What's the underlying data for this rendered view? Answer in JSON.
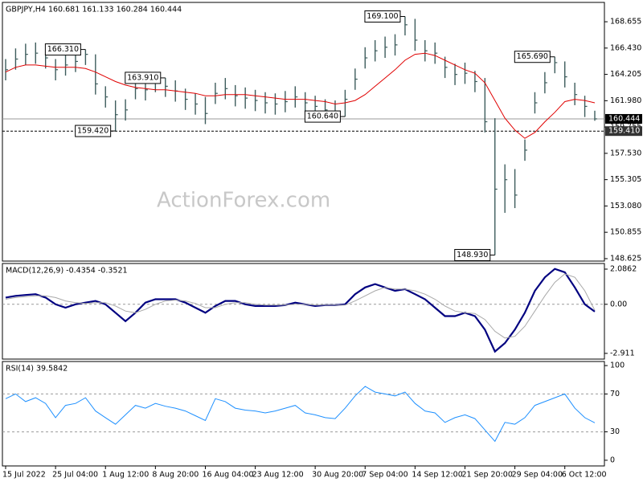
{
  "watermark": "ActionForex.com",
  "chart_data": [
    {
      "type": "ohlc",
      "title": "GBPJPY,H4  160.681 161.133 160.284 160.444",
      "ylim": [
        148.42,
        170.29
      ],
      "yticks": [
        168.655,
        {
          "value": 166.43,
          "label": "166.430"
        },
        164.205,
        {
          "value": 161.98,
          "label": "161.980"
        },
        159.755,
        {
          "value": 157.53,
          "label": "157.530"
        },
        155.305,
        {
          "value": 153.08,
          "label": "153.080"
        },
        150.855,
        148.625
      ],
      "color": "#3d5c5c",
      "high": [
        165.5,
        166.4,
        166.8,
        166.9,
        166.5,
        165.5,
        165.9,
        166.2,
        166.31,
        165.9,
        163.2,
        162.0,
        162.1,
        163.9,
        163.8,
        163.8,
        163.91,
        163.7,
        163.0,
        162.6,
        162.3,
        163.5,
        163.9,
        163.3,
        163.1,
        162.9,
        162.7,
        162.6,
        162.8,
        163.2,
        162.7,
        162.4,
        162.1,
        162.0,
        162.9,
        164.7,
        166.5,
        167.1,
        167.4,
        167.6,
        169.1,
        168.9,
        167.1,
        166.9,
        165.7,
        165.1,
        165.2,
        164.5,
        163.9,
        160.5,
        156.6,
        156.2,
        158.7,
        162.7,
        164.4,
        165.69,
        165.3,
        163.5,
        162.4,
        161.133
      ],
      "low": [
        163.7,
        164.6,
        165.0,
        165.1,
        164.7,
        163.7,
        164.1,
        164.4,
        165.0,
        162.5,
        161.4,
        159.42,
        160.3,
        162.1,
        162.0,
        162.7,
        162.3,
        161.9,
        161.2,
        160.8,
        160.0,
        161.7,
        162.1,
        161.5,
        161.3,
        161.1,
        160.9,
        160.8,
        161.0,
        161.4,
        160.9,
        160.9,
        160.7,
        160.7,
        160.64,
        162.9,
        164.7,
        165.3,
        165.6,
        165.8,
        167.5,
        166.2,
        165.3,
        165.1,
        163.9,
        163.3,
        163.4,
        162.7,
        159.3,
        148.93,
        152.5,
        152.9,
        156.9,
        160.9,
        162.6,
        164.3,
        163.1,
        161.6,
        160.6,
        160.284
      ],
      "close": [
        164.6,
        165.5,
        165.9,
        166.0,
        165.6,
        164.6,
        165.0,
        165.3,
        165.9,
        163.4,
        162.3,
        160.8,
        161.2,
        163.0,
        162.9,
        163.6,
        163.2,
        162.8,
        162.1,
        161.7,
        160.9,
        162.6,
        163.0,
        162.4,
        162.2,
        162.0,
        161.8,
        161.7,
        161.9,
        162.3,
        161.8,
        161.5,
        161.2,
        161.1,
        162.1,
        163.8,
        165.6,
        166.2,
        166.5,
        166.7,
        168.4,
        167.1,
        166.2,
        166.0,
        164.8,
        164.2,
        164.3,
        163.6,
        160.2,
        154.5,
        155.3,
        154.0,
        157.8,
        161.8,
        163.5,
        165.2,
        164.0,
        162.5,
        161.5,
        160.444
      ],
      "series": [
        {
          "color": "#e00000",
          "values": [
            164.4,
            164.8,
            165.0,
            165.0,
            164.9,
            164.8,
            164.8,
            164.8,
            164.7,
            164.4,
            164.0,
            163.6,
            163.3,
            163.1,
            163.0,
            162.9,
            162.9,
            162.8,
            162.7,
            162.6,
            162.4,
            162.4,
            162.5,
            162.5,
            162.5,
            162.4,
            162.3,
            162.2,
            162.1,
            162.1,
            162.1,
            162.0,
            161.9,
            161.7,
            161.8,
            162.0,
            162.5,
            163.2,
            163.9,
            164.6,
            165.4,
            165.9,
            166.0,
            165.8,
            165.4,
            165.0,
            164.6,
            164.3,
            163.5,
            162.0,
            160.5,
            159.5,
            158.8,
            159.3,
            160.2,
            161.0,
            161.9,
            162.1,
            162.0,
            161.8
          ]
        }
      ],
      "levels": [
        {
          "value": 160.444,
          "style": "solid"
        },
        {
          "value": 159.41,
          "label": "159.410",
          "style": "dashed"
        }
      ],
      "annotations": [
        {
          "value": 166.31,
          "label": "166.310"
        },
        {
          "value": 163.91,
          "label": "163.910"
        },
        {
          "value": 159.42,
          "label": "159.420"
        },
        {
          "value": 160.64,
          "label": "160.640"
        },
        {
          "value": 169.1,
          "label": "169.100"
        },
        {
          "value": 148.93,
          "label": "148.930"
        },
        {
          "value": 165.69,
          "label": "165.690"
        }
      ]
    },
    {
      "type": "line",
      "title": "MACD(12,26,9) -0.4354 -0.3521",
      "ylim": [
        -3.25,
        2.42
      ],
      "yticks": [
        2.0862,
        {
          "value": 0,
          "label": "0.00"
        },
        -2.911
      ],
      "levels": [
        0
      ],
      "series": [
        {
          "color": "#000080",
          "width": 2.2,
          "values": [
            0.4,
            0.5,
            0.55,
            0.6,
            0.4,
            0.0,
            -0.2,
            0.0,
            0.1,
            0.2,
            0.0,
            -0.5,
            -1.0,
            -0.5,
            0.1,
            0.3,
            0.3,
            0.3,
            0.1,
            -0.2,
            -0.5,
            -0.1,
            0.2,
            0.2,
            0.0,
            -0.1,
            -0.1,
            -0.1,
            -0.05,
            0.1,
            0.0,
            -0.1,
            -0.05,
            -0.05,
            0.0,
            0.6,
            1.0,
            1.2,
            1.0,
            0.8,
            0.9,
            0.6,
            0.3,
            -0.2,
            -0.7,
            -0.7,
            -0.5,
            -0.7,
            -1.5,
            -2.8,
            -2.3,
            -1.5,
            -0.5,
            0.8,
            1.6,
            2.1,
            1.9,
            1.0,
            0.0,
            -0.4354
          ]
        },
        {
          "color": "#a9a9a9",
          "width": 1,
          "values": [
            0.3,
            0.4,
            0.45,
            0.5,
            0.5,
            0.4,
            0.2,
            0.1,
            0.05,
            0.1,
            0.1,
            -0.1,
            -0.4,
            -0.5,
            -0.3,
            0.0,
            0.2,
            0.25,
            0.2,
            0.05,
            -0.2,
            -0.2,
            0.0,
            0.1,
            0.1,
            0.0,
            -0.05,
            -0.05,
            -0.05,
            0.0,
            0.0,
            -0.05,
            -0.05,
            -0.05,
            -0.05,
            0.2,
            0.5,
            0.8,
            1.0,
            0.9,
            0.9,
            0.8,
            0.6,
            0.3,
            -0.1,
            -0.4,
            -0.5,
            -0.55,
            -0.9,
            -1.6,
            -2.0,
            -1.9,
            -1.3,
            -0.4,
            0.5,
            1.3,
            1.8,
            1.6,
            0.8,
            -0.3521
          ]
        }
      ]
    },
    {
      "type": "line",
      "title": "RSI(14) 39.5842",
      "ylim": [
        -6,
        104.3
      ],
      "yticks": [
        100,
        70,
        30,
        0
      ],
      "levels": [
        70,
        30
      ],
      "categories": [
        "15 Jul 2022",
        null,
        null,
        null,
        null,
        "25 Jul 04:00",
        null,
        null,
        null,
        null,
        "1 Aug 12:00",
        null,
        null,
        null,
        null,
        "8 Aug 20:00",
        null,
        null,
        null,
        null,
        "16 Aug 04:00",
        null,
        null,
        null,
        null,
        "23 Aug 12:00",
        null,
        null,
        null,
        null,
        null,
        "30 Aug 20:00",
        null,
        null,
        null,
        null,
        "7 Sep 04:00",
        null,
        null,
        null,
        null,
        "14 Sep 12:00",
        null,
        null,
        null,
        null,
        "21 Sep 20:00",
        null,
        null,
        null,
        null,
        "29 Sep 04:00",
        null,
        null,
        null,
        null,
        "6 Oct 12:00",
        null,
        null,
        null
      ],
      "series": [
        {
          "color": "#1e90ff",
          "width": 1,
          "values": [
            65,
            70,
            62,
            66,
            60,
            45,
            58,
            60,
            66,
            52,
            45,
            38,
            48,
            58,
            55,
            60,
            57,
            55,
            52,
            47,
            42,
            65,
            62,
            55,
            53,
            52,
            50,
            52,
            55,
            58,
            50,
            48,
            45,
            44,
            55,
            68,
            78,
            72,
            70,
            68,
            72,
            60,
            52,
            50,
            40,
            45,
            48,
            44,
            32,
            20,
            40,
            38,
            45,
            58,
            62,
            66,
            70,
            55,
            45,
            39.5842
          ]
        }
      ]
    }
  ]
}
